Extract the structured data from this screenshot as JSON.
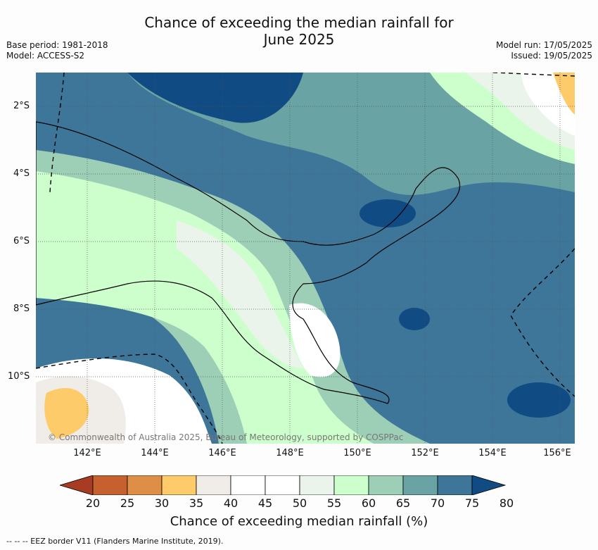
{
  "title": {
    "line1": "Chance of exceeding the median rainfall for",
    "line2": "June 2025"
  },
  "meta_left": {
    "base_period": "Base period: 1981-2018",
    "model": "Model: ACCESS-S2"
  },
  "meta_right": {
    "model_run": "Model run: 17/05/2025",
    "issued": "Issued: 19/05/2025"
  },
  "map": {
    "lat_labels": [
      "2°S",
      "4°S",
      "6°S",
      "8°S",
      "10°S"
    ],
    "lon_labels": [
      "142°E",
      "144°E",
      "146°E",
      "148°E",
      "150°E",
      "152°E",
      "154°E",
      "156°E"
    ],
    "copyright": "© Commonwealth of Australia 2025, Bureau of Meteorology, supported by COSPPac"
  },
  "colorbar": {
    "ticks": [
      "20",
      "25",
      "30",
      "35",
      "40",
      "45",
      "50",
      "55",
      "60",
      "65",
      "70",
      "75",
      "80"
    ],
    "colors": [
      "#a83c22",
      "#c7602f",
      "#de8e47",
      "#fdcb6a",
      "#f0ece8",
      "#ffffff",
      "#ffffff",
      "#eaf4ea",
      "#ccffcc",
      "#9dcfb6",
      "#6aa3a3",
      "#3d7699",
      "#104b84"
    ],
    "title": "Chance of exceeding median rainfall (%)"
  },
  "footnote": "-- -- -- EEZ border V11 (Flanders Marine Institute, 2019)."
}
